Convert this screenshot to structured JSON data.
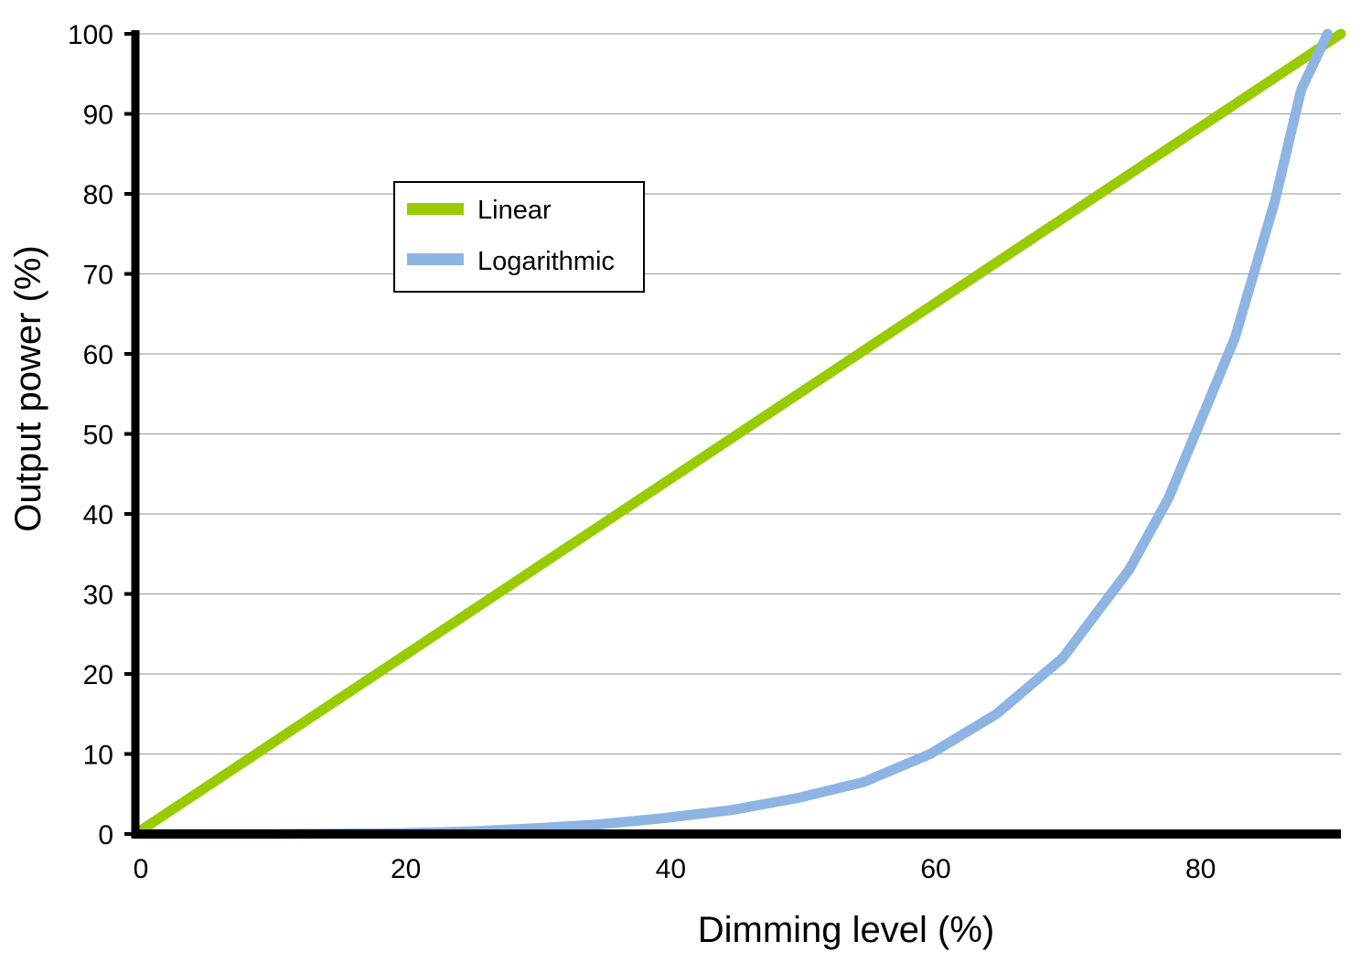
{
  "chart_data": {
    "type": "line",
    "xlabel": "Dimming level (%)",
    "ylabel": "Output power (%)",
    "xlim": [
      0,
      91
    ],
    "ylim": [
      0,
      100
    ],
    "x_ticks": [
      0,
      20,
      40,
      60,
      80
    ],
    "y_ticks": [
      0,
      10,
      20,
      30,
      40,
      50,
      60,
      70,
      80,
      90,
      100
    ],
    "grid": "horizontal",
    "legend_position": "upper-left",
    "series": [
      {
        "name": "Linear",
        "color": "#99cc00",
        "x": [
          0,
          91
        ],
        "y": [
          0,
          100
        ]
      },
      {
        "name": "Logarithmic",
        "color": "#8eb4e3",
        "x": [
          0,
          10,
          20,
          25,
          30,
          35,
          40,
          45,
          50,
          55,
          60,
          65,
          70,
          75,
          78,
          80,
          83,
          86,
          88,
          90
        ],
        "y": [
          0,
          0,
          0.1,
          0.3,
          0.7,
          1.2,
          2,
          3,
          4.5,
          6.5,
          10,
          15,
          22,
          33,
          42,
          50,
          62,
          79,
          93,
          100
        ]
      }
    ]
  }
}
